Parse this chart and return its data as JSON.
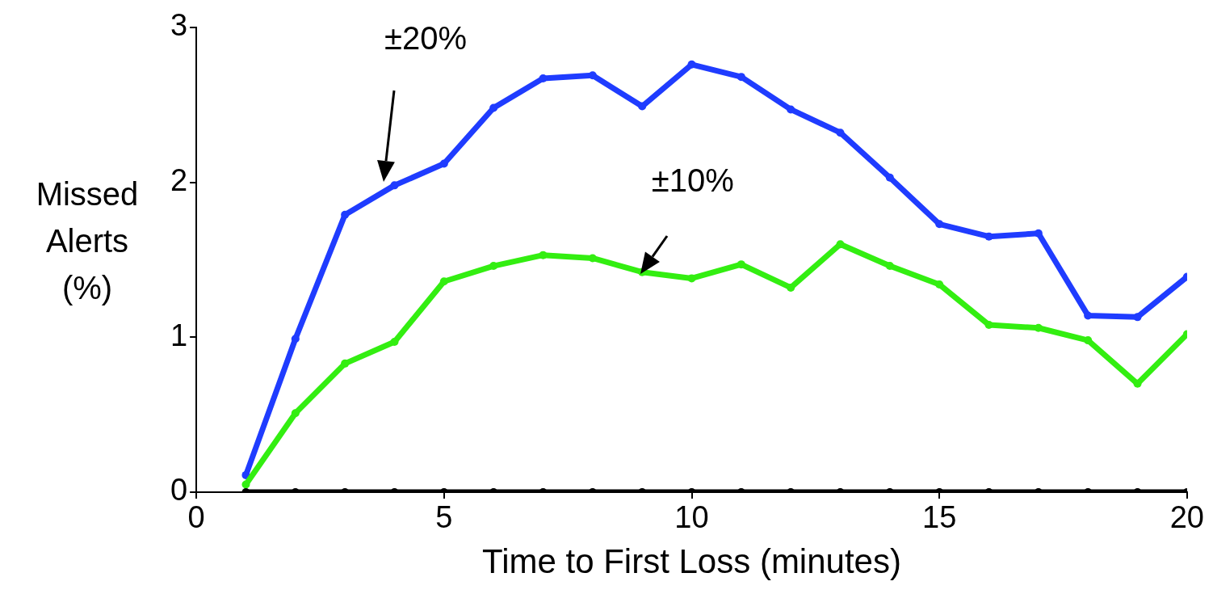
{
  "chart_data": {
    "type": "line",
    "xlabel": "Time to First Loss (minutes)",
    "ylabel": "Missed Alerts (%)",
    "x": [
      1,
      2,
      3,
      4,
      5,
      6,
      7,
      8,
      9,
      10,
      11,
      12,
      13,
      14,
      15,
      16,
      17,
      18,
      19,
      20
    ],
    "series": [
      {
        "color": "#1f3cff",
        "values": [
          0.11,
          0.99,
          1.79,
          1.98,
          2.12,
          2.48,
          2.67,
          2.69,
          2.49,
          2.76,
          2.68,
          2.47,
          2.32,
          2.03,
          1.73,
          1.65,
          1.67,
          1.14,
          1.13,
          1.39
        ]
      },
      {
        "color": "#33ee11",
        "values": [
          0.05,
          0.51,
          0.83,
          0.97,
          1.36,
          1.46,
          1.53,
          1.51,
          1.42,
          1.38,
          1.47,
          1.32,
          1.6,
          1.46,
          1.34,
          1.08,
          1.06,
          0.98,
          0.7,
          1.02
        ]
      },
      {
        "color": "#000000",
        "values": [
          0,
          0,
          0,
          0,
          0,
          0,
          0,
          0,
          0,
          0,
          0,
          0,
          0,
          0,
          0,
          0,
          0,
          0,
          0,
          0
        ]
      }
    ],
    "xlim": [
      0,
      20
    ],
    "xticks": [
      0,
      5,
      10,
      15,
      20
    ],
    "ylim": [
      0,
      3
    ],
    "yticks": [
      0,
      1,
      2,
      3
    ],
    "grid": false,
    "legend": false,
    "marker": "circle",
    "line_style": "solid",
    "annotations": [
      "±20%",
      {
        "text": "±10%",
        "x": 8.96,
        "y": 1.41
      }
    ]
  }
}
